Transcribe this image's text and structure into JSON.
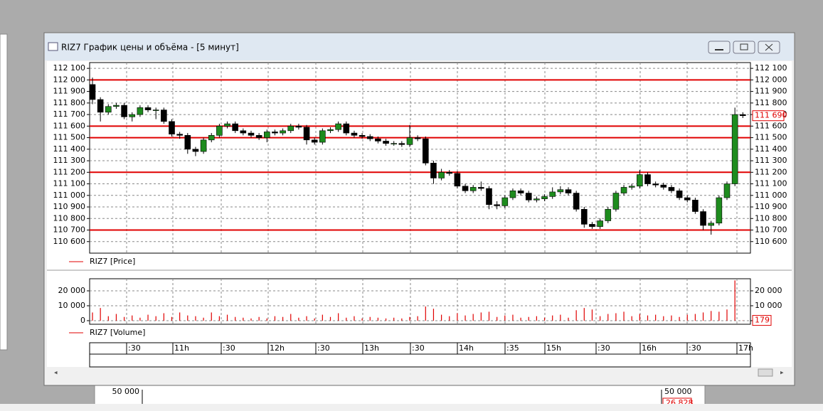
{
  "window": {
    "title": "RIZ7 График цены и объёма - [5 минут]"
  },
  "chart_data": [
    {
      "type": "candlestick",
      "legend": "RIZ7 [Price]",
      "color_up": "#1e8c1e",
      "color_down": "#000000",
      "level_color": "#e00000",
      "open": [
        111960,
        111830,
        111720,
        111770,
        111780,
        111680,
        111700,
        111760,
        111740,
        111740,
        111640,
        111530,
        111520,
        111400,
        111380,
        111480,
        111520,
        111600,
        111620,
        111560,
        111540,
        111520,
        111500,
        111550,
        111540,
        111560,
        111600,
        111590,
        111480,
        111460,
        111560,
        111570,
        111620,
        111540,
        111520,
        111510,
        111490,
        111470,
        111450,
        111450,
        111440,
        111500,
        111490,
        111280,
        111150,
        111200,
        111190,
        111080,
        111040,
        111070,
        111060,
        110920,
        110910,
        110980,
        111040,
        111020,
        110960,
        110970,
        110990,
        111030,
        111050,
        111020,
        110880,
        110750,
        110730,
        110780,
        110880,
        111020,
        111070,
        111080,
        111180,
        111100,
        111090,
        111070,
        111040,
        110980,
        110960,
        110860,
        110740,
        110760,
        110980,
        111100,
        111700
      ],
      "high": [
        112020,
        111850,
        111790,
        111800,
        111800,
        111720,
        111780,
        111780,
        111760,
        111760,
        111660,
        111550,
        111540,
        111420,
        111500,
        111540,
        111620,
        111640,
        111640,
        111580,
        111560,
        111540,
        111570,
        111570,
        111580,
        111620,
        111620,
        111610,
        111500,
        111580,
        111590,
        111640,
        111640,
        111560,
        111540,
        111530,
        111510,
        111490,
        111470,
        111470,
        111610,
        111520,
        111510,
        111300,
        111230,
        111220,
        111210,
        111100,
        111090,
        111120,
        111080,
        110950,
        111000,
        111060,
        111060,
        111040,
        110990,
        111010,
        111070,
        111080,
        111070,
        111040,
        110900,
        110770,
        110800,
        110900,
        111040,
        111090,
        111100,
        111220,
        111200,
        111120,
        111110,
        111090,
        111060,
        111000,
        110980,
        110880,
        110780,
        111000,
        111120,
        111760,
        111720
      ],
      "low": [
        111790,
        111640,
        111700,
        111750,
        111660,
        111640,
        111680,
        111720,
        111660,
        111620,
        111510,
        111490,
        111360,
        111340,
        111360,
        111460,
        111500,
        111580,
        111540,
        111520,
        111500,
        111480,
        111460,
        111520,
        111520,
        111540,
        111570,
        111440,
        111440,
        111440,
        111540,
        111550,
        111520,
        111500,
        111490,
        111470,
        111450,
        111430,
        111430,
        111420,
        111420,
        111470,
        111260,
        111100,
        111130,
        111170,
        111060,
        111020,
        111020,
        111040,
        110880,
        110880,
        110890,
        110960,
        111000,
        110940,
        110940,
        110950,
        110970,
        111010,
        111000,
        110860,
        110720,
        110710,
        110710,
        110760,
        110860,
        111000,
        111050,
        111060,
        111080,
        111070,
        111050,
        111020,
        110960,
        110940,
        110840,
        110700,
        110660,
        110740,
        110960,
        111080,
        111670
      ],
      "close": [
        111830,
        111720,
        111770,
        111780,
        111680,
        111700,
        111760,
        111740,
        111740,
        111640,
        111530,
        111520,
        111400,
        111380,
        111480,
        111520,
        111600,
        111620,
        111560,
        111540,
        111520,
        111500,
        111550,
        111540,
        111560,
        111600,
        111590,
        111480,
        111460,
        111560,
        111570,
        111620,
        111540,
        111520,
        111510,
        111490,
        111470,
        111450,
        111450,
        111440,
        111500,
        111490,
        111280,
        111150,
        111200,
        111190,
        111080,
        111040,
        111070,
        111060,
        110920,
        110910,
        110980,
        111040,
        111020,
        110960,
        110970,
        110990,
        111030,
        111050,
        111020,
        110880,
        110750,
        110730,
        110780,
        110880,
        111020,
        111070,
        111080,
        111180,
        111100,
        111090,
        111070,
        111040,
        110980,
        110960,
        110860,
        110740,
        110760,
        110980,
        111100,
        111700,
        111690
      ],
      "levels": [
        112000,
        111600,
        111500,
        111200,
        110700
      ],
      "current_value": {
        "value": 111690,
        "label": "111 690"
      },
      "ylim": [
        110500,
        112150
      ],
      "yticks": [
        {
          "value": 112100,
          "label": "112 100"
        },
        {
          "value": 112000,
          "label": "112 000"
        },
        {
          "value": 111900,
          "label": "111 900"
        },
        {
          "value": 111800,
          "label": "111 800"
        },
        {
          "value": 111700,
          "label": "111 700"
        },
        {
          "value": 111600,
          "label": "111 600"
        },
        {
          "value": 111500,
          "label": "111 500"
        },
        {
          "value": 111400,
          "label": "111 400"
        },
        {
          "value": 111300,
          "label": "111 300"
        },
        {
          "value": 111200,
          "label": "111 200"
        },
        {
          "value": 111100,
          "label": "111 100"
        },
        {
          "value": 111000,
          "label": "111 000"
        },
        {
          "value": 110900,
          "label": "110 900"
        },
        {
          "value": 110800,
          "label": "110 800"
        },
        {
          "value": 110700,
          "label": "110 700"
        },
        {
          "value": 110600,
          "label": "110 600"
        }
      ],
      "grid": true
    },
    {
      "type": "bar",
      "legend": "RIZ7 [Volume]",
      "color": "#e00000",
      "values": [
        5500,
        8500,
        3000,
        4500,
        2500,
        3500,
        2000,
        4000,
        3000,
        5000,
        2500,
        5500,
        3500,
        3000,
        2000,
        5500,
        3000,
        4000,
        2500,
        2000,
        1500,
        2500,
        1500,
        3000,
        2500,
        4500,
        2000,
        3000,
        1500,
        4000,
        2500,
        5000,
        2000,
        3000,
        1500,
        2500,
        2000,
        1500,
        2000,
        1500,
        2500,
        3000,
        9500,
        8000,
        4000,
        3000,
        5000,
        3500,
        4500,
        5500,
        6000,
        2500,
        3500,
        4000,
        2000,
        2500,
        3000,
        2000,
        3500,
        4000,
        2000,
        7000,
        8500,
        7500,
        3000,
        4500,
        5000,
        6000,
        3000,
        4500,
        3500,
        4000,
        3000,
        3500,
        2500,
        4000,
        4500,
        5500,
        6500,
        6000,
        7500,
        27000,
        179
      ],
      "current_value": 179,
      "ylim": [
        -2400,
        28100
      ],
      "yticks": [
        0,
        {
          "value": 10000,
          "label": "10 000"
        },
        {
          "value": 20000,
          "label": "20 000"
        }
      ],
      "grid": true
    }
  ],
  "time_labels": [
    ":30",
    "11h",
    ":30",
    "12h",
    ":30",
    "13h",
    ":30",
    "14h",
    ":35",
    "15h",
    ":30",
    "16h",
    ":30",
    "17h"
  ],
  "background_window": {
    "tick_label": "50 000",
    "value_label": "26 828"
  }
}
